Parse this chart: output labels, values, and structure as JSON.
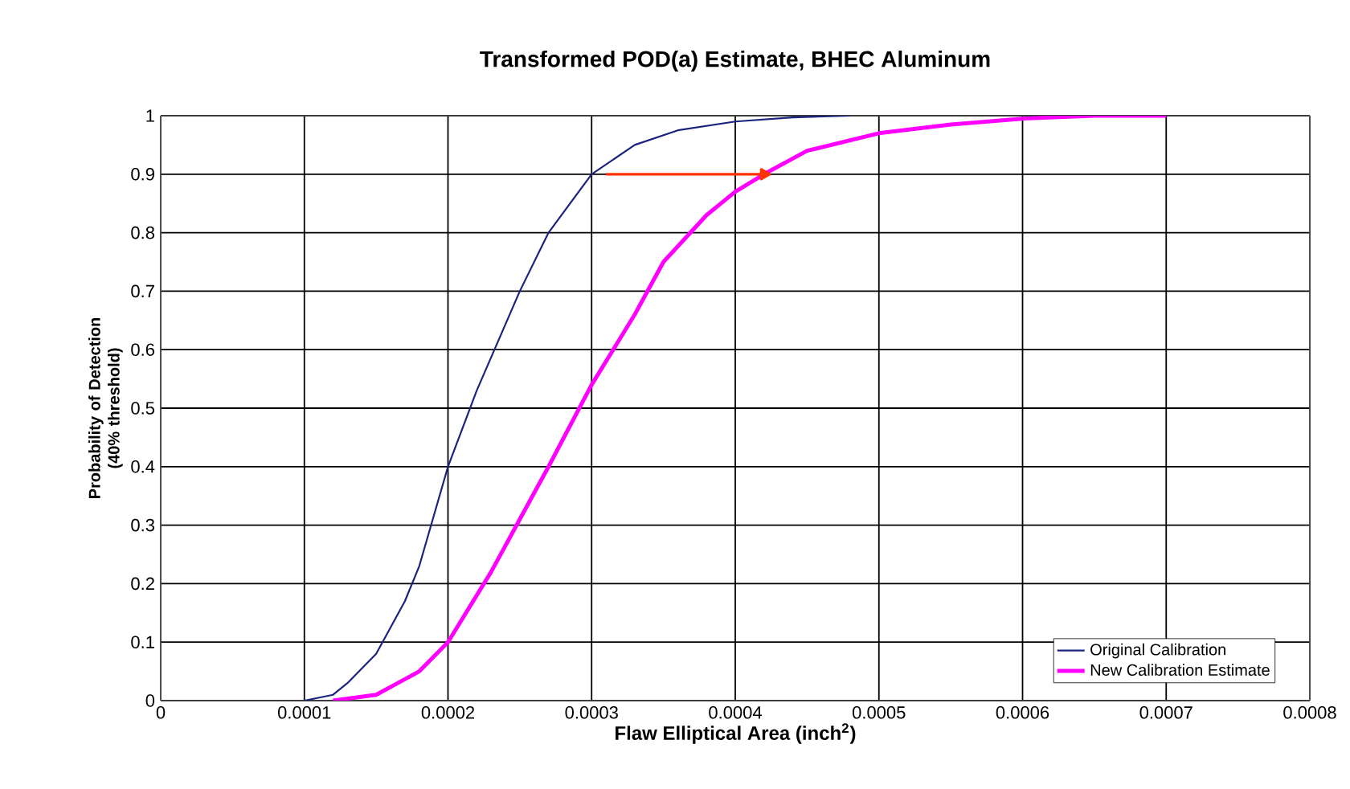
{
  "chart_data": {
    "type": "line",
    "title": "Transformed POD(a) Estimate, BHEC Aluminum",
    "xlabel": "Flaw Elliptical Area (inch$^{2}$)",
    "ylabel": "Probability of Detection (40% threshold)",
    "series": [
      {
        "name": "Original Calibration",
        "color": "#1a237e",
        "x": [
          0.0001,
          0.00012,
          0.00013,
          0.00015,
          0.00017,
          0.00018,
          0.0002,
          0.00022,
          0.00025,
          0.00027,
          0.0003,
          0.00033,
          0.00036,
          0.0004,
          0.00044,
          0.00048
        ],
        "values": [
          0,
          0.01,
          0.03,
          0.08,
          0.17,
          0.23,
          0.4,
          0.53,
          0.7,
          0.8,
          0.9,
          0.95,
          0.975,
          0.99,
          0.997,
          1.0
        ]
      },
      {
        "name": "New Calibration Estimate",
        "color": "#ff00ff",
        "x": [
          0.00012,
          0.00015,
          0.00018,
          0.0002,
          0.00023,
          0.00025,
          0.00027,
          0.0003,
          0.00033,
          0.00035,
          0.00038,
          0.0004,
          0.00042,
          0.00045,
          0.0005,
          0.00055,
          0.0006,
          0.00065,
          0.0007
        ],
        "values": [
          0,
          0.01,
          0.05,
          0.1,
          0.22,
          0.31,
          0.4,
          0.54,
          0.66,
          0.75,
          0.83,
          0.87,
          0.9,
          0.94,
          0.97,
          0.985,
          0.995,
          1.0,
          1.0
        ]
      },
      {
        "color": "#ff3300",
        "x": [
          0.00031,
          0.00042
        ],
        "values": [
          0.9,
          0.9
        ],
        "marker": "triangle"
      }
    ],
    "xlim": [
      0,
      0.0008
    ],
    "ylim": [
      0,
      1
    ],
    "xticks": [
      0,
      0.0001,
      0.0002,
      0.0003,
      0.0004,
      0.0005,
      0.0006,
      0.0007,
      0.0008
    ],
    "yticks": [
      0,
      0.1,
      0.2,
      0.3,
      0.4,
      0.5,
      0.6,
      0.7,
      0.8,
      0.9,
      1
    ],
    "grid": true,
    "legend": "bottom right",
    "marker": "none",
    "line_style": "solid"
  }
}
